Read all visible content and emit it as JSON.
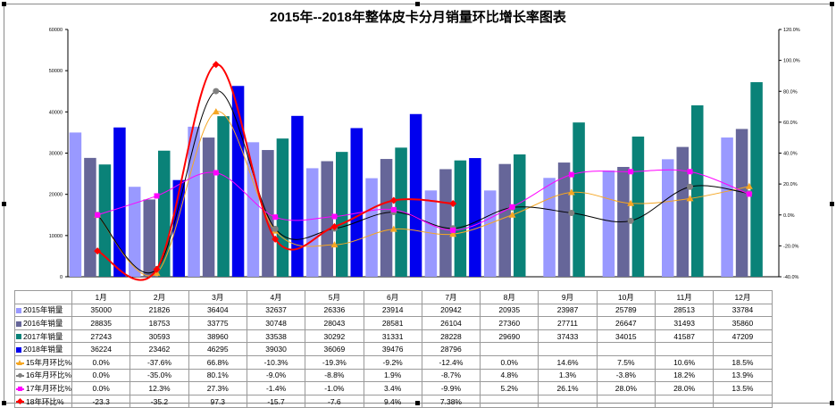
{
  "chart_data": {
    "type": "bar",
    "title": "2015年--2018年整体皮卡分月销量环比增长率图表",
    "categories": [
      "1月",
      "2月",
      "3月",
      "4月",
      "5月",
      "6月",
      "7月",
      "8月",
      "9月",
      "10月",
      "11月",
      "12月"
    ],
    "left_axis": {
      "ylim": [
        0,
        60000
      ],
      "ticks": [
        "0",
        "10000",
        "20000",
        "30000",
        "40000",
        "50000",
        "60000"
      ]
    },
    "right_axis": {
      "ylim": [
        -40,
        120
      ],
      "ticks": [
        "-40.0%",
        "-20.0%",
        "0.0%",
        "20.0%",
        "40.0%",
        "60.0%",
        "80.0%",
        "100.0%",
        "120.0%"
      ]
    },
    "bar_series": [
      {
        "name": "2015年销量",
        "color": "#9999ff",
        "values": [
          35000,
          21826,
          36404,
          32637,
          26336,
          23914,
          20942,
          20935,
          23987,
          25789,
          28513,
          33784
        ],
        "labels": [
          "35000",
          "21826",
          "36404",
          "32637",
          "26336",
          "23914",
          "20942",
          "20935",
          "23987",
          "25789",
          "28513",
          "33784"
        ]
      },
      {
        "name": "2016年销量",
        "color": "#666699",
        "values": [
          28835,
          18753,
          33775,
          30748,
          28043,
          28581,
          26104,
          27360,
          27711,
          26647,
          31493,
          35860
        ],
        "labels": [
          "28835",
          "18753",
          "33775",
          "30748",
          "28043",
          "28581",
          "26104",
          "27360",
          "27711",
          "26647",
          "31493",
          "35860"
        ]
      },
      {
        "name": "2017年销量",
        "color": "#0a8278",
        "values": [
          27243,
          30593,
          38960,
          33538,
          30292,
          31331,
          28228,
          29690,
          37433,
          34015,
          41587,
          47209
        ],
        "labels": [
          "27243",
          "30593",
          "38960",
          "33538",
          "30292",
          "31331",
          "28228",
          "29690",
          "37433",
          "34015",
          "41587",
          "47209"
        ]
      },
      {
        "name": "2018年销量",
        "color": "#0000ee",
        "values": [
          36224,
          23462,
          46295,
          39030,
          36069,
          39476,
          28796,
          null,
          null,
          null,
          null,
          null
        ],
        "labels": [
          "36224",
          "23462",
          "46295",
          "39030",
          "36069",
          "39476",
          "28796",
          "",
          "",
          "",
          "",
          ""
        ]
      }
    ],
    "line_series": [
      {
        "name": "15年月环比%",
        "color": "#f5a623",
        "marker": "triangle",
        "values": [
          0.0,
          -37.6,
          66.8,
          -10.3,
          -19.3,
          -9.2,
          -12.4,
          0.0,
          14.6,
          7.5,
          10.6,
          18.5
        ],
        "labels": [
          "0.0%",
          "-37.6%",
          "66.8%",
          "-10.3%",
          "-19.3%",
          "-9.2%",
          "-12.4%",
          "0.0%",
          "14.6%",
          "7.5%",
          "10.6%",
          "18.5%"
        ]
      },
      {
        "name": "16年月环比%",
        "color": "#808080",
        "line_color": "#000000",
        "marker": "circle",
        "values": [
          0.0,
          -35.0,
          80.1,
          -9.0,
          -8.8,
          1.9,
          -8.7,
          4.8,
          1.3,
          -3.8,
          18.2,
          13.9
        ],
        "labels": [
          "0.0%",
          "-35.0%",
          "80.1%",
          "-9.0%",
          "-8.8%",
          "1.9%",
          "-8.7%",
          "4.8%",
          "1.3%",
          "-3.8%",
          "18.2%",
          "13.9%"
        ]
      },
      {
        "name": "17年月环比%",
        "color": "#ff00ff",
        "marker": "square",
        "values": [
          0.0,
          12.3,
          27.3,
          -1.4,
          -1.0,
          3.4,
          -9.9,
          5.2,
          26.1,
          28.0,
          28.0,
          13.5
        ],
        "labels": [
          "0.0%",
          "12.3%",
          "27.3%",
          "-1.4%",
          "-1.0%",
          "3.4%",
          "-9.9%",
          "5.2%",
          "26.1%",
          "28.0%",
          "28.0%",
          "13.5%"
        ]
      },
      {
        "name": "18年环比%",
        "color": "#ff0000",
        "marker": "diamond",
        "values": [
          -23.3,
          -35.2,
          97.3,
          -15.7,
          -7.6,
          9.4,
          7.38,
          null,
          null,
          null,
          null,
          null
        ],
        "labels": [
          "-23.3",
          "-35.2",
          "97.3",
          "-15.7",
          "-7.6",
          "9.4%",
          "7.38%",
          "",
          "",
          "",
          "",
          ""
        ]
      }
    ],
    "grid": false,
    "legend": "table-below"
  }
}
